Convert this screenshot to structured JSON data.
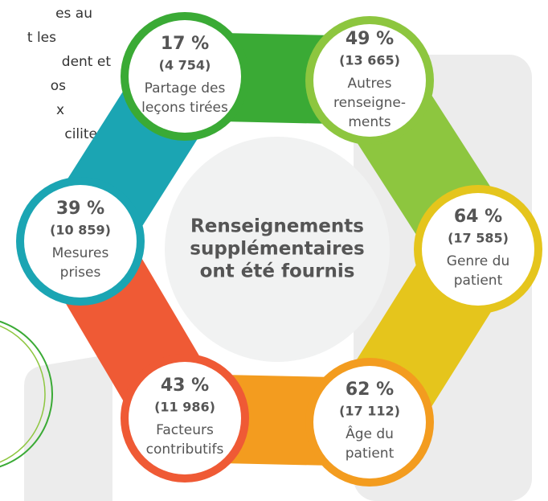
{
  "side_text": [
    "es au",
    "t les",
    "dent et",
    "os",
    "x",
    "ciliter"
  ],
  "center": [
    "Renseignements",
    "supplémentaires",
    "ont été fournis"
  ],
  "nodes": [
    {
      "percent": "17 %",
      "count": "(4 754)",
      "label": [
        "Partage des",
        "leçons tirées"
      ],
      "color": "#3aaa35"
    },
    {
      "percent": "49 %",
      "count": "(13 665)",
      "label": [
        "Autres",
        "renseigne-",
        "ments"
      ],
      "color": "#8dc63f"
    },
    {
      "percent": "64 %",
      "count": "(17 585)",
      "label": [
        "Genre du",
        "patient"
      ],
      "color": "#e5c51c"
    },
    {
      "percent": "62 %",
      "count": "(17 112)",
      "label": [
        "Âge du",
        "patient"
      ],
      "color": "#f39c1f"
    },
    {
      "percent": "43 %",
      "count": "(11 986)",
      "label": [
        "Facteurs",
        "contributifs"
      ],
      "color": "#ef5a35"
    },
    {
      "percent": "39 %",
      "count": "(10 859)",
      "label": [
        "Mesures",
        "prises"
      ],
      "color": "#1ba5b3"
    }
  ]
}
